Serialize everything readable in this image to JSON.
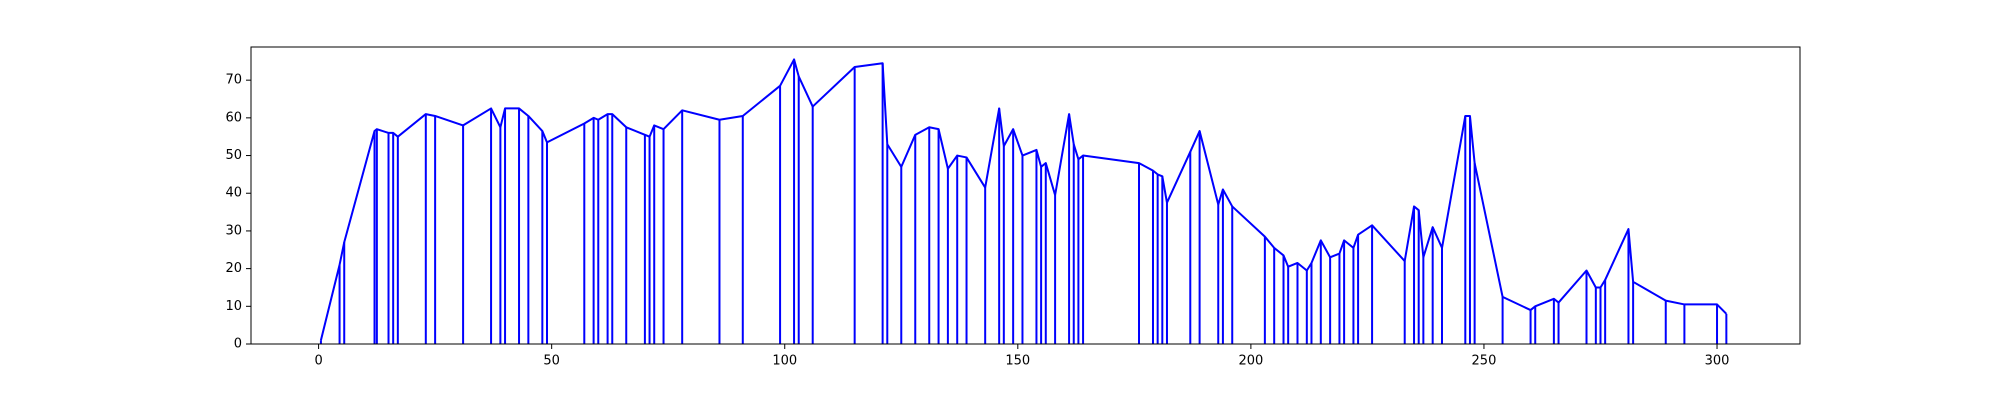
{
  "chart_data": {
    "type": "line",
    "stems": true,
    "x": [
      0.5,
      4.5,
      5.5,
      12,
      12.5,
      15,
      16,
      17,
      23,
      25,
      31,
      37,
      39,
      40,
      43,
      45,
      48,
      49,
      57,
      59,
      60,
      62,
      63,
      66,
      70,
      71,
      72,
      74,
      78,
      86,
      91,
      99,
      102,
      103,
      106,
      115,
      121,
      122,
      125,
      128,
      131,
      133,
      135,
      137,
      139,
      143,
      146,
      147,
      149,
      151,
      154,
      155,
      156,
      158,
      161,
      162,
      163,
      164,
      176,
      179,
      180,
      181,
      182,
      187,
      189,
      193,
      194,
      196,
      203,
      205,
      207,
      208,
      210,
      212,
      213,
      215,
      217,
      219,
      220,
      222,
      223,
      226,
      233,
      235,
      236,
      237,
      239,
      241,
      246,
      247,
      248,
      254,
      260,
      261,
      265,
      266,
      272,
      274,
      275,
      276,
      281,
      282,
      289,
      293,
      300,
      302
    ],
    "series": [
      {
        "color": "#0000ff",
        "values": [
          1,
          21,
          27,
          56.5,
          57,
          56,
          56,
          55,
          61,
          60.5,
          58,
          62.5,
          57.5,
          62.5,
          62.5,
          60.5,
          56.5,
          53.5,
          58.5,
          60,
          59.5,
          61,
          61,
          57.5,
          55.5,
          55,
          58,
          57,
          62,
          59.5,
          60.5,
          68.5,
          75.5,
          71,
          63,
          73.5,
          74.5,
          53,
          47,
          55.5,
          57.5,
          57,
          46.5,
          50,
          49.5,
          41.5,
          62.5,
          52.5,
          57,
          50,
          51.5,
          47,
          48,
          39.5,
          61,
          53,
          49,
          50,
          48,
          46,
          45,
          44.5,
          37.5,
          51,
          56.5,
          37,
          41,
          36.5,
          28.5,
          25.5,
          23.5,
          20.5,
          21.5,
          19.5,
          21.5,
          27.5,
          23,
          24,
          27.5,
          25.5,
          29,
          31.5,
          22,
          36.5,
          35.5,
          23,
          31,
          25.5,
          60.5,
          60.5,
          48,
          12.5,
          9,
          10,
          12,
          11,
          19.5,
          15,
          15,
          17,
          30.5,
          16.5,
          11.5,
          10.5,
          10.5,
          8
        ]
      }
    ],
    "xlim": [
      -14.5,
      317.8
    ],
    "ylim": [
      0,
      78.8
    ],
    "xticks": [
      0,
      50,
      100,
      150,
      200,
      250,
      300
    ],
    "yticks": [
      0,
      10,
      20,
      30,
      40,
      50,
      60,
      70
    ]
  }
}
